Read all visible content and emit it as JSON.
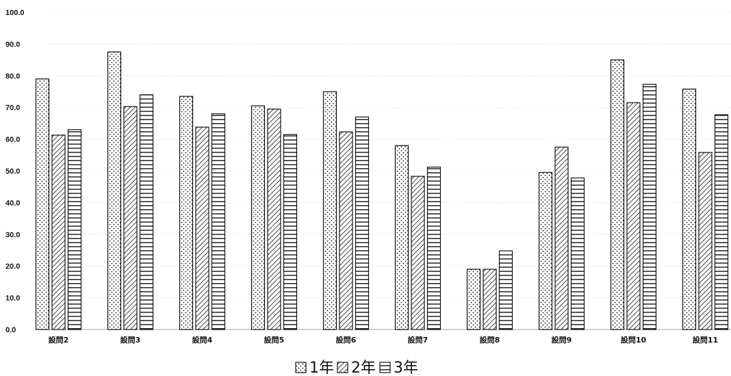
{
  "chart_data": {
    "type": "bar",
    "categories": [
      "設問2",
      "設問3",
      "設問4",
      "設問5",
      "設問6",
      "設問7",
      "設問8",
      "設問9",
      "設問10",
      "設問11"
    ],
    "series": [
      {
        "name": "1年",
        "pattern": "dots",
        "values": [
          79.0,
          87.5,
          73.5,
          70.5,
          75.0,
          58.0,
          19.0,
          49.5,
          85.0,
          75.8
        ]
      },
      {
        "name": "2年",
        "pattern": "diagonal",
        "values": [
          61.3,
          70.3,
          63.8,
          69.5,
          62.3,
          48.3,
          19.0,
          57.5,
          71.5,
          55.8
        ]
      },
      {
        "name": "3年",
        "pattern": "horizontal",
        "values": [
          63.0,
          74.0,
          68.0,
          61.5,
          67.0,
          51.2,
          24.8,
          47.8,
          77.3,
          67.7
        ]
      }
    ],
    "y_ticks": [
      "0.0",
      "10.0",
      "20.0",
      "30.0",
      "40.0",
      "50.0",
      "60.0",
      "70.0",
      "80.0",
      "90.0",
      "100.0"
    ],
    "ylim": [
      0,
      100
    ],
    "grid": true,
    "legend_position": "bottom-center",
    "colors": {
      "stroke": "#111111",
      "fill": "#ffffff",
      "grid": "#bbbbbb"
    }
  }
}
